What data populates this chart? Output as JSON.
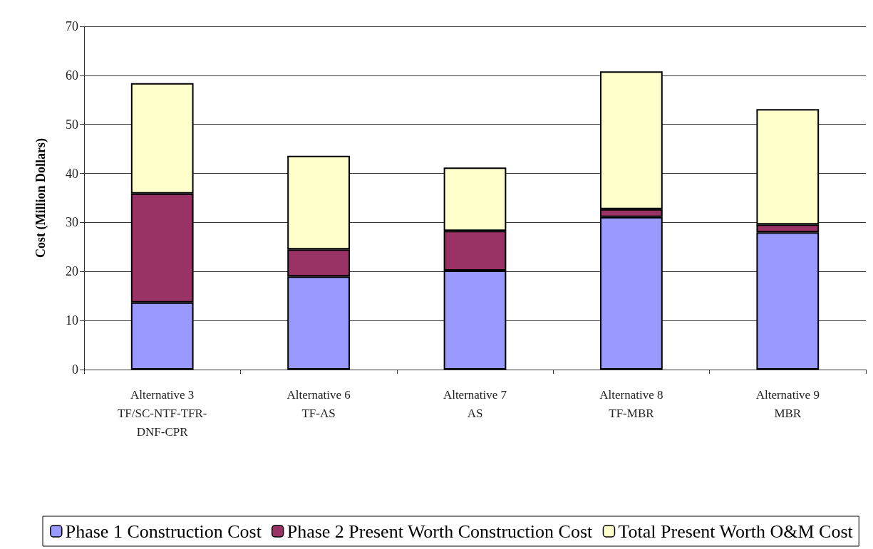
{
  "chart_data": {
    "type": "bar",
    "stacked": true,
    "ylabel": "Cost (Million Dollars)",
    "categories": [
      "Alternative 3\nTF/SC-NTF-TFR-\nDNF-CPR",
      "Alternative 6\nTF-AS",
      "Alternative 7\nAS",
      "Alternative 8\nTF-MBR",
      "Alternative 9\nMBR"
    ],
    "series": [
      {
        "name": "Phase 1 Construction Cost",
        "color": "#9999ff",
        "values": [
          13.7,
          19.0,
          20.2,
          31.1,
          28.0
        ]
      },
      {
        "name": "Phase 2 Present Worth Construction Cost",
        "color": "#993366",
        "values": [
          22.2,
          5.5,
          8.1,
          1.6,
          1.6
        ]
      },
      {
        "name": "Total Present Worth O&M Cost",
        "color": "#ffffcc",
        "values": [
          22.5,
          19.1,
          12.9,
          28.1,
          23.5
        ]
      }
    ],
    "ylim": [
      0,
      70
    ],
    "yticks": [
      0,
      10,
      20,
      30,
      40,
      50,
      60,
      70
    ],
    "grid": "y",
    "legend": "bottom"
  }
}
